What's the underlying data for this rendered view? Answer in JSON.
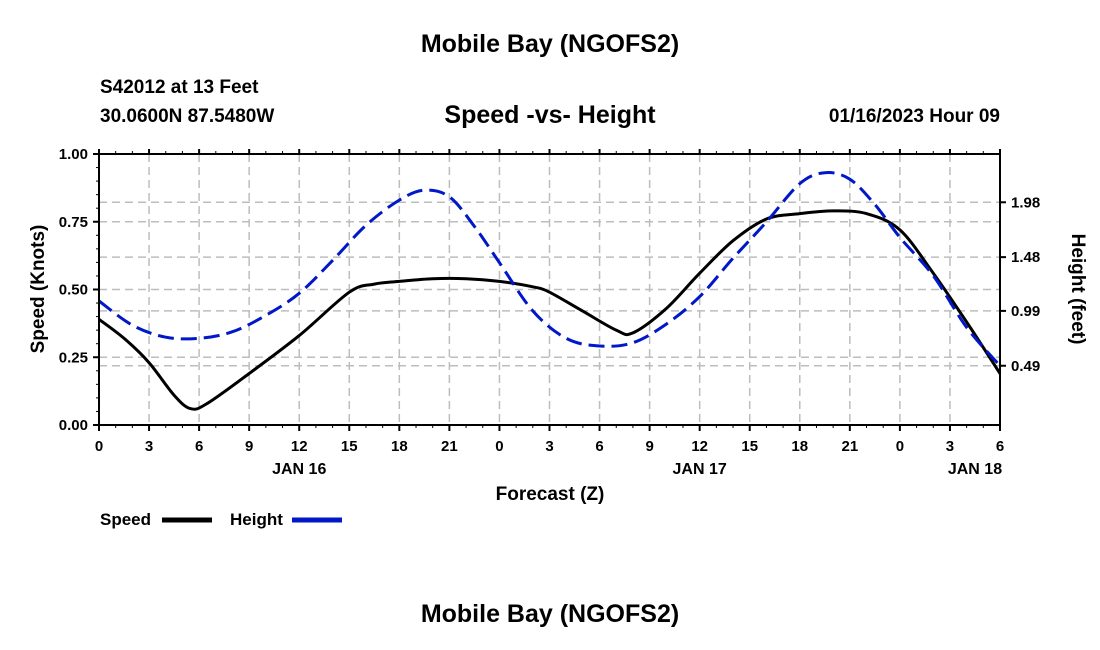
{
  "header": {
    "title": "Mobile Bay (NGOFS2)",
    "station": "S42012 at 13 Feet",
    "coords": "30.0600N  87.5480W",
    "subtitle": "Speed -vs- Height",
    "datetime": "01/16/2023 Hour 09"
  },
  "footer": {
    "title": "Mobile Bay (NGOFS2)"
  },
  "chart_data": {
    "type": "line",
    "title": "Speed -vs- Height",
    "xlabel": "Forecast (Z)",
    "ylabel": "Speed (Knots)",
    "y2label": "Height (feet)",
    "xlim": [
      0,
      54
    ],
    "ylim": [
      0,
      1
    ],
    "y2lim": [
      -0.05,
      2.42
    ],
    "grid": true,
    "legend_position": "bottom-left",
    "x_ticks": [
      0,
      3,
      6,
      9,
      12,
      15,
      18,
      21,
      24,
      27,
      30,
      33,
      36,
      39,
      42,
      45,
      48,
      51,
      54
    ],
    "x_tick_labels": [
      "0",
      "3",
      "6",
      "9",
      "12",
      "15",
      "18",
      "21",
      "0",
      "3",
      "6",
      "9",
      "12",
      "15",
      "18",
      "21",
      "0",
      "3",
      "6"
    ],
    "date_labels": [
      {
        "x": 12,
        "label": "JAN 16"
      },
      {
        "x": 36,
        "label": "JAN 17"
      },
      {
        "x": 52.5,
        "label": "JAN 18"
      }
    ],
    "y_ticks": [
      0,
      0.25,
      0.5,
      0.75,
      1.0
    ],
    "y_tick_labels": [
      "0.00",
      "0.25",
      "0.50",
      "0.75",
      "1.00"
    ],
    "y2_ticks": [
      0.49,
      0.99,
      1.48,
      1.98
    ],
    "y2_tick_labels": [
      "0.49",
      "0.99",
      "1.48",
      "1.98"
    ],
    "series": [
      {
        "name": "Speed",
        "axis": "left",
        "color": "#000000",
        "dash": "solid",
        "x": [
          0,
          1.5,
          3,
          4.5,
          5.5,
          6.5,
          9,
          12,
          15,
          16.5,
          18,
          20,
          22,
          24,
          26,
          27,
          29,
          31,
          32,
          34,
          36,
          38,
          40,
          42,
          44,
          46,
          48,
          50,
          52,
          54
        ],
        "values": [
          0.39,
          0.32,
          0.23,
          0.11,
          0.06,
          0.08,
          0.19,
          0.33,
          0.49,
          0.52,
          0.53,
          0.54,
          0.54,
          0.53,
          0.51,
          0.49,
          0.42,
          0.35,
          0.34,
          0.43,
          0.56,
          0.68,
          0.76,
          0.78,
          0.79,
          0.78,
          0.72,
          0.56,
          0.38,
          0.19
        ]
      },
      {
        "name": "Height",
        "axis": "right",
        "color": "#0018c8",
        "dash": "dashed",
        "x": [
          0,
          2,
          4,
          6,
          8,
          10,
          12,
          14,
          16,
          18,
          19.5,
          21,
          22.5,
          24,
          26,
          28,
          30,
          32,
          34,
          36,
          38,
          40,
          42,
          43.5,
          45,
          46.5,
          48,
          50,
          52,
          54
        ],
        "values": [
          1.08,
          0.86,
          0.75,
          0.74,
          0.8,
          0.95,
          1.15,
          1.45,
          1.77,
          2.0,
          2.09,
          2.03,
          1.76,
          1.43,
          0.99,
          0.74,
          0.67,
          0.7,
          0.87,
          1.12,
          1.47,
          1.8,
          2.15,
          2.25,
          2.19,
          1.96,
          1.66,
          1.31,
          0.84,
          0.49
        ]
      }
    ],
    "legend": [
      {
        "label": "Speed",
        "color": "#000000"
      },
      {
        "label": "Height",
        "color": "#0018c8"
      }
    ]
  }
}
